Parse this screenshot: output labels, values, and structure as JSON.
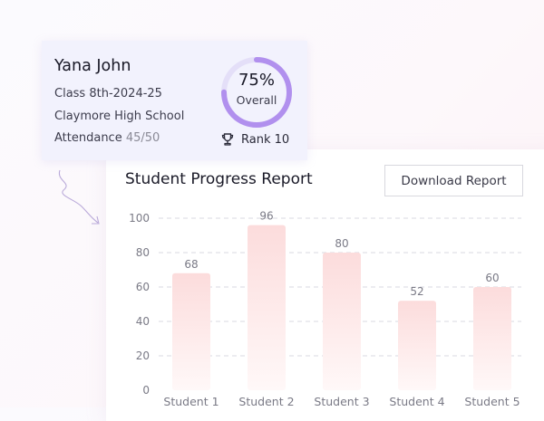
{
  "student": {
    "name": "Yana John",
    "class_line": "Class 8th-2024-25",
    "school": "Claymore High School",
    "attendance_label": "Attendance",
    "attendance_value": "45/50",
    "overall_percent_text": "75%",
    "overall_label": "Overall",
    "overall_fraction": 0.75,
    "rank_text": "Rank 10"
  },
  "report": {
    "title": "Student Progress Report",
    "download_label": "Download Report"
  },
  "icons": {
    "trophy": "trophy-icon",
    "arrow": "curly-arrow-icon"
  },
  "colors": {
    "ring_progress": "#b190ee",
    "ring_track": "#e4dff8",
    "bar_top": "#fcdcdc",
    "bar_bottom": "#fff8f8",
    "grid": "#d9d9e0",
    "axis_text": "#7a7a86"
  },
  "chart_data": {
    "type": "bar",
    "categories": [
      "Student 1",
      "Student 2",
      "Student 3",
      "Student 4",
      "Student 5"
    ],
    "values": [
      68,
      96,
      80,
      52,
      60
    ],
    "title": "Student Progress Report",
    "xlabel": "",
    "ylabel": "",
    "ylim": [
      0,
      100
    ],
    "yticks": [
      0,
      20,
      40,
      60,
      80,
      100
    ],
    "grid": true,
    "legend": "none"
  }
}
